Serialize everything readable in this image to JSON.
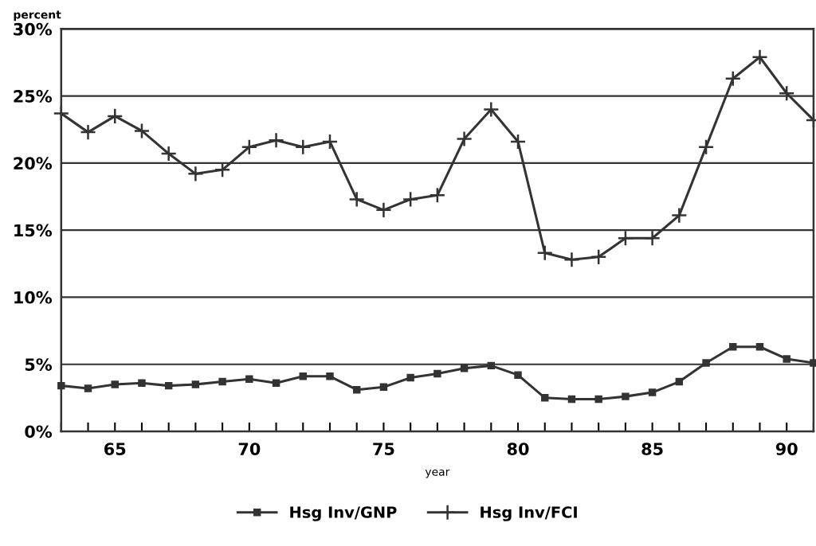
{
  "chart_data": {
    "type": "line",
    "xlabel": "year",
    "ylabel": "percent",
    "x": [
      63,
      64,
      65,
      66,
      67,
      68,
      69,
      70,
      71,
      72,
      73,
      74,
      75,
      76,
      77,
      78,
      79,
      80,
      81,
      82,
      83,
      84,
      85,
      86,
      87,
      88,
      89,
      90,
      91
    ],
    "series": [
      {
        "name": "Hsg Inv/GNP",
        "color": "#333333",
        "marker": "square",
        "values": [
          3.4,
          3.2,
          3.5,
          3.6,
          3.4,
          3.5,
          3.7,
          3.9,
          3.6,
          4.1,
          4.1,
          3.1,
          3.3,
          4.0,
          4.3,
          4.7,
          4.9,
          4.2,
          2.5,
          2.4,
          2.4,
          2.6,
          2.9,
          3.7,
          5.1,
          6.3,
          6.3,
          5.4,
          5.1
        ]
      },
      {
        "name": "Hsg Inv/FCI",
        "color": "#333333",
        "marker": "cross",
        "values": [
          23.7,
          22.3,
          23.5,
          22.4,
          20.7,
          19.2,
          19.5,
          21.2,
          21.7,
          21.2,
          21.6,
          17.3,
          16.5,
          17.3,
          17.6,
          21.8,
          24.0,
          21.6,
          13.3,
          12.8,
          13.0,
          14.4,
          14.4,
          16.1,
          21.2,
          26.3,
          27.9,
          25.2,
          23.2
        ]
      }
    ],
    "xlim": [
      63,
      91
    ],
    "xticks": [
      {
        "value": 63,
        "label": null
      },
      {
        "value": 64,
        "label": null
      },
      65,
      {
        "value": 66,
        "label": null
      },
      {
        "value": 67,
        "label": null
      },
      {
        "value": 68,
        "label": null
      },
      {
        "value": 69,
        "label": null
      },
      70,
      {
        "value": 71,
        "label": null
      },
      {
        "value": 72,
        "label": null
      },
      {
        "value": 73,
        "label": null
      },
      {
        "value": 74,
        "label": null
      },
      75,
      {
        "value": 76,
        "label": null
      },
      {
        "value": 77,
        "label": null
      },
      {
        "value": 78,
        "label": null
      },
      {
        "value": 79,
        "label": null
      },
      80,
      {
        "value": 81,
        "label": null
      },
      {
        "value": 82,
        "label": null
      },
      {
        "value": 83,
        "label": null
      },
      {
        "value": 84,
        "label": null
      },
      85,
      {
        "value": 86,
        "label": null
      },
      {
        "value": 87,
        "label": null
      },
      {
        "value": 88,
        "label": null
      },
      {
        "value": 89,
        "label": null
      },
      90,
      {
        "value": 91,
        "label": null
      }
    ],
    "ylim": [
      0,
      30
    ],
    "yticks": [
      {
        "value": 0,
        "label": "0%"
      },
      {
        "value": 5,
        "label": "5%"
      },
      {
        "value": 10,
        "label": "10%"
      },
      {
        "value": 15,
        "label": "15%"
      },
      {
        "value": 20,
        "label": "20%"
      },
      {
        "value": 25,
        "label": "25%"
      },
      {
        "value": 30,
        "label": "30%"
      }
    ],
    "grid": "y",
    "legend": "bottom",
    "line_style": "solid"
  }
}
